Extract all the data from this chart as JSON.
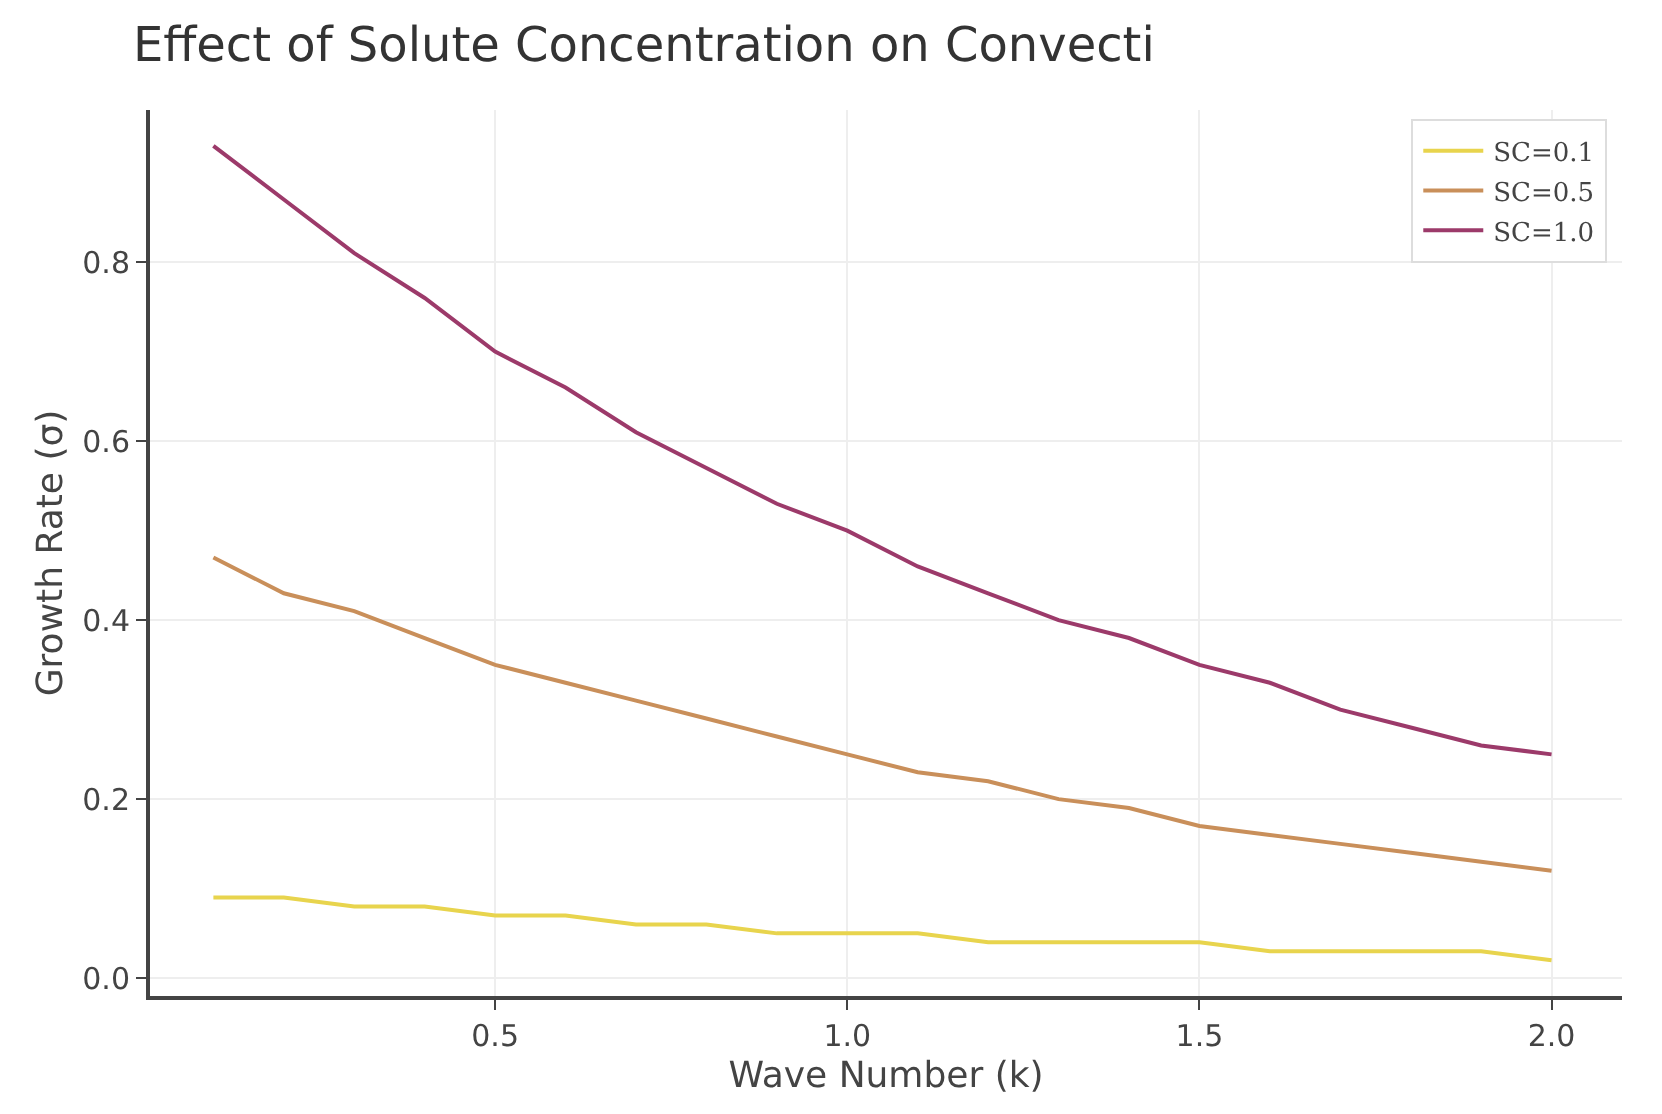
{
  "chart_data": {
    "type": "line",
    "title": "Effect of Solute Concentration on Convecti",
    "xlabel": "Wave Number (k)",
    "ylabel": "Growth Rate (σ)",
    "x": [
      0.1,
      0.2,
      0.3,
      0.4,
      0.5,
      0.6,
      0.7,
      0.8,
      0.9,
      1.0,
      1.1,
      1.2,
      1.3,
      1.4,
      1.5,
      1.6,
      1.7,
      1.8,
      1.9,
      2.0
    ],
    "series": [
      {
        "name": "SC=0.1",
        "color": "#e8d44d",
        "values": [
          0.09,
          0.09,
          0.08,
          0.08,
          0.07,
          0.07,
          0.06,
          0.06,
          0.05,
          0.05,
          0.05,
          0.04,
          0.04,
          0.04,
          0.04,
          0.03,
          0.03,
          0.03,
          0.03,
          0.02
        ]
      },
      {
        "name": "SC=0.5",
        "color": "#c98f5a",
        "values": [
          0.47,
          0.43,
          0.41,
          0.38,
          0.35,
          0.33,
          0.31,
          0.29,
          0.27,
          0.25,
          0.23,
          0.22,
          0.2,
          0.19,
          0.17,
          0.16,
          0.15,
          0.14,
          0.13,
          0.12
        ]
      },
      {
        "name": "SC=1.0",
        "color": "#9c3a6a",
        "values": [
          0.93,
          0.87,
          0.81,
          0.76,
          0.7,
          0.66,
          0.61,
          0.57,
          0.53,
          0.5,
          0.46,
          0.43,
          0.4,
          0.38,
          0.35,
          0.33,
          0.3,
          0.28,
          0.26,
          0.25
        ]
      }
    ],
    "xlim": [
      0.01,
      2.1
    ],
    "xticks": [
      0.5,
      {
        "value": 1,
        "label": "1.0"
      },
      1.5,
      {
        "value": 2,
        "label": "2.0"
      }
    ],
    "ylim": [
      -0.02,
      0.97
    ],
    "yticks": [
      {
        "value": 0,
        "label": "0.0"
      },
      0.2,
      0.4,
      0.6,
      0.8
    ],
    "grid": true,
    "legend": "top right",
    "marker": "none",
    "line_style": "solid"
  }
}
